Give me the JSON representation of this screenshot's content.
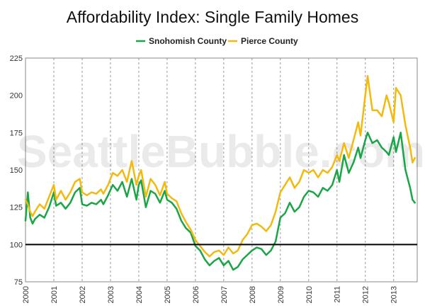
{
  "chart_data": {
    "type": "line",
    "title": "Affordability Index: Single Family Homes",
    "watermark": "SeattleBubble.com",
    "legend_position": "top-center",
    "ylim": [
      75,
      225
    ],
    "yticks": [
      75,
      100,
      125,
      150,
      175,
      200,
      225
    ],
    "xlim": [
      2000.0,
      2013.833
    ],
    "xticks": [
      "2000",
      "2001",
      "2002",
      "2003",
      "2004",
      "2005",
      "2006",
      "2007",
      "2008",
      "2009",
      "2010",
      "2011",
      "2012",
      "2013"
    ],
    "reference_line": 100,
    "grid": "vertical dashed at each year",
    "colors": {
      "snohomish": "#1aa547",
      "pierce": "#f2b90f",
      "reference": "#000000"
    },
    "series": [
      {
        "name": "Snohomish County",
        "color": "#1aa547",
        "x": [
          2000.0,
          2000.083,
          2000.167,
          2000.25,
          2000.333,
          2000.5,
          2000.667,
          2000.833,
          2001.0,
          2001.083,
          2001.25,
          2001.417,
          2001.583,
          2001.75,
          2001.917,
          2002.0,
          2002.167,
          2002.333,
          2002.5,
          2002.667,
          2002.75,
          2002.917,
          2003.083,
          2003.25,
          2003.417,
          2003.583,
          2003.75,
          2003.917,
          2004.0,
          2004.083,
          2004.25,
          2004.417,
          2004.583,
          2004.75,
          2004.917,
          2005.0,
          2005.167,
          2005.333,
          2005.5,
          2005.667,
          2005.833,
          2006.0,
          2006.167,
          2006.333,
          2006.5,
          2006.667,
          2006.833,
          2007.0,
          2007.167,
          2007.333,
          2007.5,
          2007.667,
          2007.833,
          2008.0,
          2008.167,
          2008.333,
          2008.5,
          2008.667,
          2008.833,
          2009.0,
          2009.167,
          2009.333,
          2009.5,
          2009.667,
          2009.833,
          2010.0,
          2010.167,
          2010.333,
          2010.5,
          2010.667,
          2010.833,
          2011.0,
          2011.083,
          2011.25,
          2011.417,
          2011.583,
          2011.75,
          2011.833,
          2012.0,
          2012.083,
          2012.25,
          2012.417,
          2012.583,
          2012.75,
          2012.833,
          2013.0,
          2013.083,
          2013.25,
          2013.417,
          2013.583,
          2013.667,
          2013.75
        ],
        "values": [
          116,
          135,
          118,
          114,
          117,
          120,
          118,
          125,
          135,
          126,
          128,
          124,
          128,
          135,
          138,
          127,
          126,
          128,
          127,
          130,
          127,
          133,
          140,
          136,
          142,
          132,
          144,
          130,
          140,
          143,
          125,
          136,
          134,
          128,
          136,
          130,
          128,
          124,
          116,
          111,
          108,
          99,
          96,
          90,
          86,
          89,
          91,
          86,
          89,
          83,
          85,
          90,
          93,
          96,
          98,
          97,
          93,
          96,
          102,
          118,
          121,
          128,
          122,
          125,
          132,
          136,
          135,
          132,
          138,
          136,
          140,
          150,
          142,
          160,
          148,
          155,
          165,
          158,
          170,
          175,
          168,
          170,
          165,
          162,
          160,
          172,
          162,
          175,
          150,
          138,
          130,
          128
        ]
      },
      {
        "name": "Pierce County",
        "color": "#f2b90f",
        "x": [
          2000.0,
          2000.083,
          2000.167,
          2000.25,
          2000.333,
          2000.5,
          2000.667,
          2000.833,
          2001.0,
          2001.083,
          2001.25,
          2001.417,
          2001.583,
          2001.75,
          2001.917,
          2002.0,
          2002.167,
          2002.333,
          2002.5,
          2002.667,
          2002.75,
          2002.917,
          2003.083,
          2003.25,
          2003.417,
          2003.583,
          2003.75,
          2003.917,
          2004.0,
          2004.083,
          2004.25,
          2004.417,
          2004.583,
          2004.75,
          2004.917,
          2005.0,
          2005.167,
          2005.333,
          2005.5,
          2005.667,
          2005.833,
          2006.0,
          2006.167,
          2006.333,
          2006.5,
          2006.667,
          2006.833,
          2007.0,
          2007.167,
          2007.333,
          2007.5,
          2007.667,
          2007.833,
          2008.0,
          2008.167,
          2008.333,
          2008.5,
          2008.667,
          2008.833,
          2009.0,
          2009.167,
          2009.333,
          2009.5,
          2009.667,
          2009.833,
          2010.0,
          2010.167,
          2010.333,
          2010.5,
          2010.667,
          2010.833,
          2011.0,
          2011.083,
          2011.25,
          2011.417,
          2011.583,
          2011.75,
          2011.833,
          2012.0,
          2012.083,
          2012.25,
          2012.417,
          2012.583,
          2012.75,
          2012.833,
          2013.0,
          2013.083,
          2013.25,
          2013.417,
          2013.583,
          2013.667,
          2013.75
        ],
        "values": [
          130,
          127,
          122,
          119,
          122,
          127,
          124,
          132,
          140,
          130,
          136,
          130,
          135,
          142,
          144,
          135,
          133,
          135,
          134,
          137,
          134,
          140,
          148,
          146,
          150,
          142,
          156,
          140,
          146,
          150,
          132,
          144,
          140,
          133,
          142,
          134,
          131,
          129,
          121,
          115,
          110,
          103,
          99,
          95,
          92,
          95,
          96,
          93,
          98,
          94,
          96,
          103,
          107,
          113,
          114,
          112,
          109,
          113,
          122,
          135,
          140,
          145,
          138,
          142,
          150,
          148,
          150,
          145,
          150,
          148,
          152,
          160,
          156,
          168,
          158,
          170,
          182,
          173,
          200,
          213,
          190,
          190,
          186,
          200,
          195,
          182,
          205,
          200,
          180,
          165,
          155,
          158
        ]
      }
    ]
  }
}
